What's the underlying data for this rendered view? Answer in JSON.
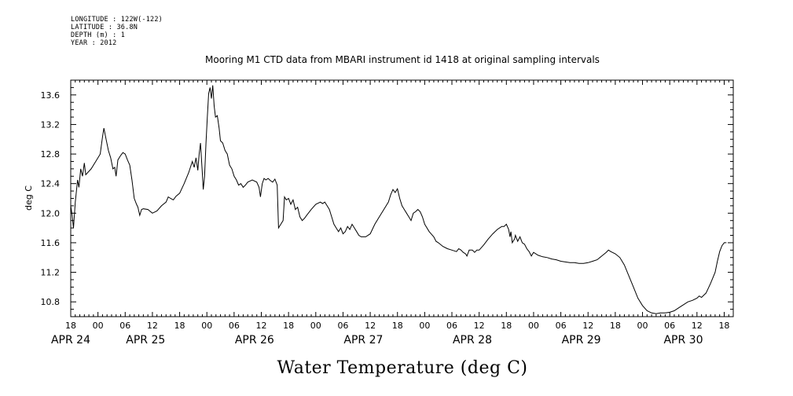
{
  "header": {
    "lines": [
      "LONGITUDE : 122W(-122)",
      "LATITUDE : 36.8N",
      "DEPTH (m) : 1",
      "YEAR : 2012"
    ]
  },
  "chart_data": {
    "type": "line",
    "title": "Mooring M1 CTD data from MBARI instrument id 1418 at original sampling intervals",
    "xlabel": "Water Temperature (deg C)",
    "ylabel": "deg C",
    "x_units": "hours since APR 23 18:00",
    "xlim": [
      0,
      146
    ],
    "ylim": [
      10.6,
      13.8
    ],
    "yticks": [
      10.8,
      11.2,
      11.6,
      12.0,
      12.4,
      12.8,
      13.2,
      13.6
    ],
    "yticklabels": [
      "10.8",
      "11.2",
      "11.6",
      "12.0",
      "12.4",
      "12.8",
      "13.2",
      "13.6"
    ],
    "xticks": [
      0,
      6,
      12,
      18,
      24,
      30,
      36,
      42,
      48,
      54,
      60,
      66,
      72,
      78,
      84,
      90,
      96,
      102,
      108,
      114,
      120,
      126,
      132,
      138,
      144
    ],
    "xticklabels": [
      "18",
      "00",
      "06",
      "12",
      "18",
      "00",
      "06",
      "12",
      "18",
      "00",
      "06",
      "12",
      "18",
      "00",
      "06",
      "12",
      "18",
      "00",
      "06",
      "12",
      "18",
      "00",
      "06",
      "12",
      "18"
    ],
    "date_labels": [
      {
        "label": "APR 24",
        "x": 0
      },
      {
        "label": "APR 25",
        "x": 16.5
      },
      {
        "label": "APR 26",
        "x": 40.5
      },
      {
        "label": "APR 27",
        "x": 64.5
      },
      {
        "label": "APR 28",
        "x": 88.5
      },
      {
        "label": "APR 29",
        "x": 112.5
      },
      {
        "label": "APR 30",
        "x": 135
      }
    ],
    "series": [
      {
        "color": "#000000",
        "points": [
          [
            0.0,
            12.1
          ],
          [
            0.3,
            11.98
          ],
          [
            0.6,
            11.8
          ],
          [
            1.0,
            12.15
          ],
          [
            1.5,
            12.45
          ],
          [
            1.8,
            12.35
          ],
          [
            2.2,
            12.6
          ],
          [
            2.6,
            12.5
          ],
          [
            3.0,
            12.68
          ],
          [
            3.3,
            12.52
          ],
          [
            4.5,
            12.6
          ],
          [
            5.5,
            12.7
          ],
          [
            6.5,
            12.8
          ],
          [
            7.0,
            13.03
          ],
          [
            7.3,
            13.15
          ],
          [
            7.8,
            13.0
          ],
          [
            8.3,
            12.85
          ],
          [
            8.8,
            12.75
          ],
          [
            9.3,
            12.6
          ],
          [
            9.7,
            12.62
          ],
          [
            10.0,
            12.5
          ],
          [
            10.4,
            12.72
          ],
          [
            11.0,
            12.78
          ],
          [
            11.5,
            12.82
          ],
          [
            12.0,
            12.8
          ],
          [
            12.5,
            12.72
          ],
          [
            13.0,
            12.65
          ],
          [
            13.5,
            12.45
          ],
          [
            14.0,
            12.2
          ],
          [
            14.5,
            12.12
          ],
          [
            14.8,
            12.08
          ],
          [
            15.2,
            11.97
          ],
          [
            15.6,
            12.05
          ],
          [
            16.0,
            12.06
          ],
          [
            17.0,
            12.05
          ],
          [
            18.0,
            12.0
          ],
          [
            19.0,
            12.03
          ],
          [
            20.0,
            12.1
          ],
          [
            21.0,
            12.15
          ],
          [
            21.5,
            12.22
          ],
          [
            22.0,
            12.2
          ],
          [
            22.6,
            12.18
          ],
          [
            23.2,
            12.23
          ],
          [
            24.0,
            12.27
          ],
          [
            25.0,
            12.4
          ],
          [
            26.0,
            12.55
          ],
          [
            26.8,
            12.7
          ],
          [
            27.2,
            12.62
          ],
          [
            27.6,
            12.75
          ],
          [
            28.0,
            12.58
          ],
          [
            28.3,
            12.8
          ],
          [
            28.6,
            12.95
          ],
          [
            29.0,
            12.55
          ],
          [
            29.2,
            12.32
          ],
          [
            29.5,
            12.5
          ],
          [
            29.8,
            12.95
          ],
          [
            30.1,
            13.3
          ],
          [
            30.4,
            13.62
          ],
          [
            30.7,
            13.7
          ],
          [
            31.0,
            13.55
          ],
          [
            31.3,
            13.73
          ],
          [
            31.6,
            13.45
          ],
          [
            31.9,
            13.3
          ],
          [
            32.3,
            13.32
          ],
          [
            32.7,
            13.15
          ],
          [
            33.0,
            12.98
          ],
          [
            33.5,
            12.95
          ],
          [
            34.0,
            12.85
          ],
          [
            34.5,
            12.8
          ],
          [
            35.0,
            12.65
          ],
          [
            35.5,
            12.6
          ],
          [
            36.0,
            12.5
          ],
          [
            36.5,
            12.45
          ],
          [
            37.0,
            12.38
          ],
          [
            37.5,
            12.4
          ],
          [
            38.0,
            12.35
          ],
          [
            38.5,
            12.38
          ],
          [
            39.0,
            12.42
          ],
          [
            40.0,
            12.45
          ],
          [
            41.0,
            12.42
          ],
          [
            41.5,
            12.35
          ],
          [
            41.8,
            12.22
          ],
          [
            42.2,
            12.4
          ],
          [
            42.6,
            12.47
          ],
          [
            43.0,
            12.45
          ],
          [
            43.5,
            12.47
          ],
          [
            44.0,
            12.44
          ],
          [
            44.5,
            12.42
          ],
          [
            45.0,
            12.46
          ],
          [
            45.5,
            12.38
          ],
          [
            45.8,
            11.8
          ],
          [
            46.3,
            11.85
          ],
          [
            46.8,
            11.9
          ],
          [
            47.1,
            12.22
          ],
          [
            47.5,
            12.18
          ],
          [
            48.0,
            12.2
          ],
          [
            48.5,
            12.12
          ],
          [
            49.0,
            12.18
          ],
          [
            49.5,
            12.05
          ],
          [
            50.0,
            12.08
          ],
          [
            50.5,
            11.95
          ],
          [
            51.0,
            11.9
          ],
          [
            51.5,
            11.93
          ],
          [
            52.0,
            11.97
          ],
          [
            53.0,
            12.05
          ],
          [
            54.0,
            12.12
          ],
          [
            55.0,
            12.15
          ],
          [
            55.5,
            12.13
          ],
          [
            56.0,
            12.15
          ],
          [
            56.5,
            12.1
          ],
          [
            57.0,
            12.05
          ],
          [
            57.5,
            11.95
          ],
          [
            58.0,
            11.85
          ],
          [
            58.5,
            11.8
          ],
          [
            59.0,
            11.75
          ],
          [
            59.5,
            11.8
          ],
          [
            60.0,
            11.72
          ],
          [
            60.5,
            11.75
          ],
          [
            61.0,
            11.82
          ],
          [
            61.5,
            11.78
          ],
          [
            62.0,
            11.85
          ],
          [
            62.5,
            11.8
          ],
          [
            63.0,
            11.75
          ],
          [
            63.5,
            11.7
          ],
          [
            64.0,
            11.68
          ],
          [
            65.0,
            11.68
          ],
          [
            66.0,
            11.72
          ],
          [
            67.0,
            11.85
          ],
          [
            68.0,
            11.95
          ],
          [
            69.0,
            12.05
          ],
          [
            70.0,
            12.15
          ],
          [
            70.5,
            12.25
          ],
          [
            71.0,
            12.32
          ],
          [
            71.5,
            12.28
          ],
          [
            72.0,
            12.33
          ],
          [
            72.5,
            12.2
          ],
          [
            73.0,
            12.1
          ],
          [
            73.5,
            12.05
          ],
          [
            74.0,
            12.0
          ],
          [
            74.5,
            11.95
          ],
          [
            75.0,
            11.9
          ],
          [
            75.5,
            12.0
          ],
          [
            76.0,
            12.02
          ],
          [
            76.5,
            12.05
          ],
          [
            77.0,
            12.02
          ],
          [
            77.5,
            11.95
          ],
          [
            78.0,
            11.85
          ],
          [
            79.0,
            11.75
          ],
          [
            80.0,
            11.68
          ],
          [
            80.5,
            11.62
          ],
          [
            81.0,
            11.6
          ],
          [
            82.0,
            11.55
          ],
          [
            83.0,
            11.52
          ],
          [
            84.0,
            11.5
          ],
          [
            85.0,
            11.48
          ],
          [
            85.5,
            11.52
          ],
          [
            86.0,
            11.5
          ],
          [
            86.5,
            11.47
          ],
          [
            87.0,
            11.45
          ],
          [
            87.3,
            11.42
          ],
          [
            87.8,
            11.5
          ],
          [
            88.5,
            11.5
          ],
          [
            89.0,
            11.47
          ],
          [
            89.5,
            11.5
          ],
          [
            90.0,
            11.5
          ],
          [
            91.0,
            11.57
          ],
          [
            92.0,
            11.65
          ],
          [
            93.0,
            11.72
          ],
          [
            94.0,
            11.78
          ],
          [
            95.0,
            11.82
          ],
          [
            95.5,
            11.82
          ],
          [
            96.0,
            11.85
          ],
          [
            96.5,
            11.78
          ],
          [
            96.8,
            11.68
          ],
          [
            97.0,
            11.75
          ],
          [
            97.3,
            11.6
          ],
          [
            97.8,
            11.65
          ],
          [
            98.0,
            11.7
          ],
          [
            98.5,
            11.62
          ],
          [
            99.0,
            11.68
          ],
          [
            99.5,
            11.6
          ],
          [
            100.0,
            11.58
          ],
          [
            100.5,
            11.52
          ],
          [
            101.0,
            11.48
          ],
          [
            101.5,
            11.42
          ],
          [
            102.0,
            11.47
          ],
          [
            103.0,
            11.43
          ],
          [
            104.0,
            11.41
          ],
          [
            105.0,
            11.4
          ],
          [
            106.0,
            11.38
          ],
          [
            107.0,
            11.37
          ],
          [
            108.0,
            11.35
          ],
          [
            109.0,
            11.34
          ],
          [
            110.0,
            11.33
          ],
          [
            111.0,
            11.33
          ],
          [
            112.0,
            11.32
          ],
          [
            113.0,
            11.32
          ],
          [
            114.0,
            11.33
          ],
          [
            115.0,
            11.35
          ],
          [
            116.0,
            11.37
          ],
          [
            117.0,
            11.42
          ],
          [
            118.0,
            11.47
          ],
          [
            118.5,
            11.5
          ],
          [
            119.0,
            11.48
          ],
          [
            120.0,
            11.45
          ],
          [
            121.0,
            11.4
          ],
          [
            122.0,
            11.3
          ],
          [
            123.0,
            11.15
          ],
          [
            124.0,
            11.0
          ],
          [
            125.0,
            10.85
          ],
          [
            126.0,
            10.75
          ],
          [
            127.0,
            10.68
          ],
          [
            128.0,
            10.65
          ],
          [
            129.0,
            10.64
          ],
          [
            130.0,
            10.65
          ],
          [
            131.0,
            10.65
          ],
          [
            132.0,
            10.66
          ],
          [
            133.0,
            10.68
          ],
          [
            134.0,
            10.72
          ],
          [
            135.0,
            10.76
          ],
          [
            136.0,
            10.8
          ],
          [
            137.0,
            10.82
          ],
          [
            138.0,
            10.85
          ],
          [
            138.5,
            10.88
          ],
          [
            139.0,
            10.86
          ],
          [
            140.0,
            10.92
          ],
          [
            141.0,
            11.05
          ],
          [
            142.0,
            11.2
          ],
          [
            142.5,
            11.35
          ],
          [
            143.0,
            11.48
          ],
          [
            143.5,
            11.56
          ],
          [
            144.0,
            11.6
          ],
          [
            144.5,
            11.6
          ]
        ]
      }
    ]
  }
}
